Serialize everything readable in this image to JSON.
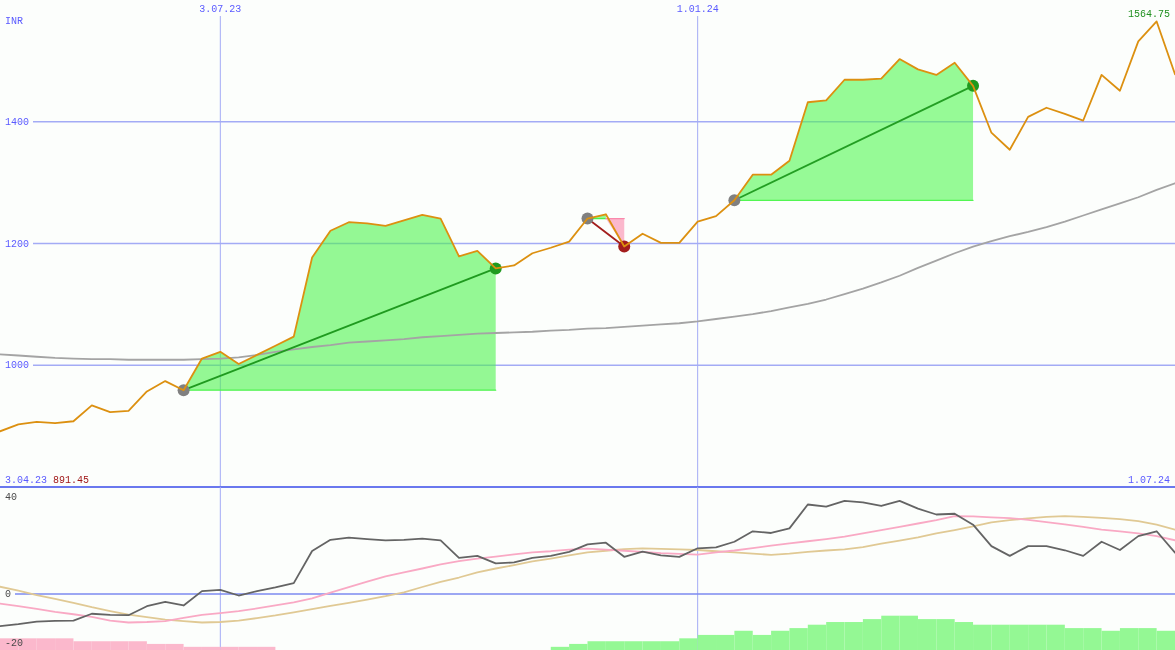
{
  "chart_data": [
    {
      "type": "line",
      "ylabel": "INR",
      "annotations": [
        "3.04.23",
        "891.45",
        "1.07.24",
        {
          "text": "1564.75",
          "x": "2024-06-24",
          "y": 1564.75
        }
      ],
      "x": [
        "2023-04-10",
        "2023-04-17",
        "2023-04-24",
        "2023-05-01",
        "2023-05-08",
        "2023-05-15",
        "2023-05-22",
        "2023-05-29",
        "2023-06-05",
        "2023-06-12",
        "2023-06-19",
        "2023-06-26",
        "2023-07-03",
        "2023-07-10",
        "2023-07-17",
        "2023-07-24",
        "2023-07-31",
        "2023-08-07",
        "2023-08-14",
        "2023-08-21",
        "2023-08-28",
        "2023-09-04",
        "2023-09-11",
        "2023-09-18",
        "2023-09-25",
        "2023-10-02",
        "2023-10-09",
        "2023-10-16",
        "2023-10-23",
        "2023-10-30",
        "2023-11-06",
        "2023-11-13",
        "2023-11-20",
        "2023-11-27",
        "2023-12-04",
        "2023-12-11",
        "2023-12-18",
        "2023-12-25",
        "2024-01-01",
        "2024-01-08",
        "2024-01-15",
        "2024-01-22",
        "2024-01-29",
        "2024-02-05",
        "2024-02-12",
        "2024-02-19",
        "2024-02-26",
        "2024-03-04",
        "2024-03-11",
        "2024-03-18",
        "2024-03-25",
        "2024-04-01",
        "2024-04-08",
        "2024-04-15",
        "2024-04-22",
        "2024-04-29",
        "2024-05-06",
        "2024-05-13",
        "2024-05-20",
        "2024-05-27",
        "2024-06-03",
        "2024-06-10",
        "2024-06-17",
        "2024-06-24",
        "2024-07-01"
      ],
      "xlim": [
        "2023-04-10",
        "2024-07-01"
      ],
      "xticks": [
        {
          "value": "2023-07-03",
          "label": "3.07.23"
        },
        {
          "value": "2024-01-01",
          "label": "1.01.24"
        }
      ],
      "ylim": [
        800,
        1600
      ],
      "yticks": [
        1000,
        1200,
        1400
      ],
      "grid": true,
      "series": [
        {
          "color": "#4ff44f",
          "x": [
            "2023-06-19",
            "2023-06-26",
            "2023-07-03",
            "2023-07-10",
            "2023-07-17",
            "2023-07-24",
            "2023-07-31",
            "2023-08-07",
            "2023-08-14",
            "2023-08-21",
            "2023-08-28",
            "2023-09-04",
            "2023-09-11",
            "2023-09-18",
            "2023-09-25",
            "2023-10-02",
            "2023-10-09",
            "2023-10-16"
          ],
          "values": [
            959,
            959,
            959,
            959,
            959,
            959,
            959,
            959,
            959,
            959,
            959,
            959,
            959,
            959,
            959,
            959,
            959,
            959
          ],
          "lower": [
            959,
            959,
            959,
            959,
            959,
            959,
            959,
            959,
            959,
            959,
            959,
            959,
            959,
            959,
            959,
            959,
            959,
            959
          ],
          "upper": [
            959,
            1011,
            1022,
            1002,
            1017,
            1032,
            1047,
            1177,
            1221,
            1235,
            1233,
            1229,
            1238,
            1247,
            1241,
            1179,
            1188,
            1159
          ]
        },
        {
          "color": "#52f652",
          "x": [
            "2024-01-15",
            "2024-01-22",
            "2024-01-29",
            "2024-02-05",
            "2024-02-12",
            "2024-02-19",
            "2024-02-26",
            "2024-03-04",
            "2024-03-11",
            "2024-03-18",
            "2024-03-25",
            "2024-04-01",
            "2024-04-08",
            "2024-04-15"
          ],
          "values": [
            1271,
            1271,
            1271,
            1271,
            1271,
            1271,
            1271,
            1271,
            1271,
            1271,
            1271,
            1271,
            1271,
            1271
          ],
          "lower": [
            1271,
            1271,
            1271,
            1271,
            1271,
            1271,
            1271,
            1271,
            1271,
            1271,
            1271,
            1271,
            1271,
            1271
          ],
          "upper": [
            1271,
            1313,
            1313,
            1336,
            1432,
            1435,
            1469,
            1469,
            1471,
            1503,
            1486,
            1477,
            1497,
            1459
          ]
        },
        {
          "color": "#4cf14c",
          "x": [
            "2023-11-20",
            "2023-11-27"
          ],
          "values": [
            1241,
            1241
          ],
          "lower": [
            1241,
            1241
          ],
          "upper": [
            1241,
            1248
          ]
        },
        {
          "color": "#fa89ac",
          "x": [
            "2023-11-27",
            "2023-12-04"
          ],
          "values": [
            1241,
            1241
          ],
          "lower": [
            1241,
            1195
          ],
          "upper": [
            1241,
            1241
          ]
        },
        {
          "color": "#a4a4a4",
          "values": [
            1018,
            1016,
            1014,
            1012,
            1011,
            1010,
            1010,
            1009,
            1009,
            1009,
            1009,
            1010,
            1011,
            1013,
            1017,
            1022,
            1026,
            1030,
            1033,
            1037,
            1039,
            1041,
            1043,
            1046,
            1048,
            1050,
            1052,
            1053,
            1054,
            1055,
            1057,
            1058,
            1060,
            1061,
            1063,
            1065,
            1067,
            1069,
            1072,
            1076,
            1080,
            1084,
            1089,
            1095,
            1101,
            1108,
            1117,
            1126,
            1136,
            1147,
            1160,
            1172,
            1184,
            1195,
            1204,
            1212,
            1219,
            1227,
            1236,
            1246,
            1256,
            1266,
            1276,
            1288,
            1299
          ]
        },
        {
          "color": "#1f9a1f",
          "x": [
            "2023-06-19",
            "2023-10-16"
          ],
          "values": [
            959,
            1159
          ]
        },
        {
          "color": "#239e23",
          "x": [
            "2024-01-15",
            "2024-04-15"
          ],
          "values": [
            1271,
            1459
          ]
        },
        {
          "color": "#a31d1d",
          "x": [
            "2023-11-20",
            "2023-12-04"
          ],
          "values": [
            1241,
            1195
          ]
        },
        {
          "type": "scatter",
          "color": "#808080",
          "marker": "circle",
          "x": [
            "2023-06-19",
            "2023-11-20",
            "2024-01-15"
          ],
          "values": [
            959,
            1241,
            1271
          ]
        },
        {
          "type": "scatter",
          "color": "#1f9a1f",
          "marker": "circle",
          "x": [
            "2023-10-16",
            "2024-04-15"
          ],
          "values": [
            1159,
            1459
          ]
        },
        {
          "type": "scatter",
          "color": "#a31d1d",
          "marker": "circle",
          "x": [
            "2023-12-04"
          ],
          "values": [
            1195
          ]
        },
        {
          "color": "#dc9010",
          "values": [
            891.45,
            903,
            907,
            905,
            908,
            934,
            923,
            925,
            957,
            974,
            959,
            1011,
            1022,
            1002,
            1017,
            1032,
            1047,
            1177,
            1221,
            1235,
            1233,
            1229,
            1238,
            1247,
            1241,
            1179,
            1188,
            1159,
            1164,
            1184,
            1193,
            1203,
            1241,
            1248,
            1195,
            1216,
            1201,
            1201,
            1236,
            1245,
            1271,
            1313,
            1313,
            1336,
            1432,
            1435,
            1469,
            1469,
            1471,
            1503,
            1486,
            1477,
            1497,
            1459,
            1382,
            1354,
            1408,
            1423,
            1413,
            1402,
            1477,
            1451,
            1532,
            1564.75,
            1478
          ]
        }
      ]
    },
    {
      "type": "line",
      "x": [
        "2023-04-10",
        "2023-04-17",
        "2023-04-24",
        "2023-05-01",
        "2023-05-08",
        "2023-05-15",
        "2023-05-22",
        "2023-05-29",
        "2023-06-05",
        "2023-06-12",
        "2023-06-19",
        "2023-06-26",
        "2023-07-03",
        "2023-07-10",
        "2023-07-17",
        "2023-07-24",
        "2023-07-31",
        "2023-08-07",
        "2023-08-14",
        "2023-08-21",
        "2023-08-28",
        "2023-09-04",
        "2023-09-11",
        "2023-09-18",
        "2023-09-25",
        "2023-10-02",
        "2023-10-09",
        "2023-10-16",
        "2023-10-23",
        "2023-10-30",
        "2023-11-06",
        "2023-11-13",
        "2023-11-20",
        "2023-11-27",
        "2023-12-04",
        "2023-12-11",
        "2023-12-18",
        "2023-12-25",
        "2024-01-01",
        "2024-01-08",
        "2024-01-15",
        "2024-01-22",
        "2024-01-29",
        "2024-02-05",
        "2024-02-12",
        "2024-02-19",
        "2024-02-26",
        "2024-03-04",
        "2024-03-11",
        "2024-03-18",
        "2024-03-25",
        "2024-04-01",
        "2024-04-08",
        "2024-04-15",
        "2024-04-22",
        "2024-04-29",
        "2024-05-06",
        "2024-05-13",
        "2024-05-20",
        "2024-05-27",
        "2024-06-03",
        "2024-06-10",
        "2024-06-17",
        "2024-06-24",
        "2024-07-01"
      ],
      "xlim": [
        "2023-04-10",
        "2024-07-01"
      ],
      "xticks": [
        {
          "value": "2023-07-03",
          "label": null
        },
        {
          "value": "2024-01-01",
          "label": null
        }
      ],
      "ylim": [
        -23,
        44
      ],
      "yticks": [
        40,
        0,
        -20
      ],
      "grid": "x",
      "tick_labels": "y",
      "ref_lines": [
        {
          "axis": "y",
          "value": 0,
          "color": "#7d8af0"
        }
      ],
      "series": [
        {
          "type": "bar",
          "x": [
            "2023-04-13T12:00",
            "2023-04-20T12:00",
            "2023-04-27T12:00",
            "2023-05-04T12:00",
            "2023-05-11T12:00",
            "2023-05-18T12:00",
            "2023-05-25T12:00",
            "2023-06-01T12:00",
            "2023-06-08T12:00",
            "2023-06-15T12:00",
            "2023-06-22T12:00",
            "2023-06-29T12:00",
            "2023-07-06T12:00",
            "2023-07-13T12:00",
            "2023-07-20T12:00",
            "2023-11-09T12:00",
            "2023-11-16T12:00",
            "2023-11-23T12:00",
            "2023-11-30T12:00",
            "2023-12-07T12:00",
            "2023-12-14T12:00",
            "2023-12-21T12:00",
            "2023-12-28T12:00",
            "2024-01-04T12:00",
            "2024-01-11T12:00",
            "2024-01-18T12:00",
            "2024-01-25T12:00",
            "2024-02-01T12:00",
            "2024-02-08T12:00",
            "2024-02-15T12:00",
            "2024-02-22T12:00",
            "2024-02-29T12:00",
            "2024-03-07T12:00",
            "2024-03-14T12:00",
            "2024-03-21T12:00",
            "2024-03-28T12:00",
            "2024-04-04T12:00",
            "2024-04-11T12:00",
            "2024-04-18T12:00",
            "2024-04-25T12:00",
            "2024-05-02T12:00",
            "2024-05-09T12:00",
            "2024-05-16T12:00",
            "2024-05-23T12:00",
            "2024-05-30T12:00",
            "2024-06-06T12:00",
            "2024-06-13T12:00",
            "2024-06-20T12:00",
            "2024-06-27T12:00"
          ],
          "values": [
            4.8,
            4.8,
            4.8,
            4.8,
            3.6,
            3.6,
            3.6,
            3.6,
            2.5,
            2.5,
            1.3,
            1.3,
            1.3,
            1.3,
            1.3,
            1.3,
            2.5,
            3.6,
            3.6,
            3.6,
            3.6,
            3.6,
            4.8,
            6.2,
            6.2,
            7.9,
            6.2,
            7.9,
            9,
            10.4,
            11.5,
            11.5,
            12.7,
            14.1,
            14.1,
            12.7,
            12.7,
            11.5,
            10.4,
            10.4,
            10.4,
            10.4,
            10.4,
            9,
            9,
            7.9,
            9,
            9,
            7.9
          ],
          "base": [
            -23,
            -23,
            -23,
            -23,
            -23,
            -23,
            -23,
            -23,
            -23,
            -23,
            -23,
            -23,
            -23,
            -23,
            -23,
            -23,
            -23,
            -23,
            -23,
            -23,
            -23,
            -23,
            -23,
            -23,
            -23,
            -23,
            -23,
            -23,
            -23,
            -23,
            -23,
            -23,
            -23,
            -23,
            -23,
            -23,
            -23,
            -23,
            -23,
            -23,
            -23,
            -23,
            -23,
            -23,
            -23,
            -23,
            -23,
            -23,
            -23
          ],
          "colors": [
            "#fbb8cc",
            "#fbb8cc",
            "#fbb8cc",
            "#fbb8cc",
            "#fbb8cc",
            "#fbb8cc",
            "#fbb8cc",
            "#fbb8cc",
            "#fbb8cc",
            "#fbb8cc",
            "#fbb8cc",
            "#fbb8cc",
            "#fbb8cc",
            "#fbb8cc",
            "#fbb8cc",
            "#94f894",
            "#94f894",
            "#94f894",
            "#94f894",
            "#94f894",
            "#94f894",
            "#94f894",
            "#94f894",
            "#94f894",
            "#94f894",
            "#94f894",
            "#94f894",
            "#94f894",
            "#94f894",
            "#94f894",
            "#94f894",
            "#94f894",
            "#94f894",
            "#94f894",
            "#94f894",
            "#94f894",
            "#94f894",
            "#94f894",
            "#94f894",
            "#94f894",
            "#94f894",
            "#94f894",
            "#94f894",
            "#94f894",
            "#94f894",
            "#94f894",
            "#94f894",
            "#94f894",
            "#94f894"
          ]
        },
        {
          "color": "#e0c994",
          "values": [
            3,
            1.4,
            -0.4,
            -2,
            -3.6,
            -5.4,
            -7,
            -8.5,
            -9.5,
            -10.5,
            -11.1,
            -11.7,
            -11.5,
            -10.9,
            -9.9,
            -8.8,
            -7.5,
            -6.2,
            -4.9,
            -3.6,
            -2.3,
            -0.9,
            0.7,
            2.9,
            5,
            6.8,
            8.9,
            10.5,
            11.9,
            13.4,
            14.6,
            15.9,
            17.1,
            17.8,
            18.5,
            18.8,
            18.6,
            18.4,
            18.1,
            17.6,
            17.1,
            16.6,
            16.1,
            16.6,
            17.3,
            17.9,
            18.4,
            19.3,
            20.7,
            22,
            23.3,
            24.9,
            26.3,
            27.8,
            29.5,
            30.4,
            31.1,
            31.7,
            32,
            31.7,
            31.3,
            30.8,
            30,
            28.5,
            26.5
          ]
        },
        {
          "color": "#f9a9c4",
          "values": [
            -3.9,
            -5,
            -6.1,
            -7.3,
            -8.3,
            -9.4,
            -10.9,
            -11.7,
            -11.5,
            -11.1,
            -9.8,
            -8.6,
            -7.8,
            -7,
            -5.9,
            -4.7,
            -3.4,
            -1.8,
            0.6,
            2.8,
            5.1,
            7.3,
            8.9,
            10.5,
            12.2,
            13.5,
            14.6,
            15.4,
            16.3,
            17.1,
            17.6,
            18.3,
            18.7,
            18.3,
            17.8,
            17.3,
            16.8,
            16.5,
            16.2,
            17.1,
            17.9,
            18.9,
            19.9,
            20.8,
            21.7,
            22.6,
            23.6,
            24.9,
            26.3,
            27.6,
            29,
            30.4,
            32,
            31.9,
            31.5,
            31.2,
            30.5,
            29.6,
            28.6,
            27.6,
            26.5,
            25.8,
            24.9,
            23.8,
            22.1
          ]
        },
        {
          "color": "#646464",
          "values": [
            -13.2,
            -12.4,
            -11.3,
            -11,
            -10.9,
            -8.1,
            -8.6,
            -8.7,
            -5,
            -3.2,
            -4.7,
            1.2,
            1.7,
            -0.6,
            1.2,
            2.7,
            4.5,
            17.7,
            22.3,
            23.2,
            22.6,
            22.1,
            22.3,
            22.8,
            22.1,
            14.9,
            15.7,
            12.6,
            13,
            14.9,
            15.7,
            17.3,
            20.4,
            21.1,
            15.3,
            17.4,
            15.9,
            15.3,
            18.8,
            19.2,
            21.5,
            25.8,
            25.1,
            27,
            36.8,
            35.9,
            38.3,
            37.7,
            36.2,
            38.3,
            35.1,
            32.7,
            33,
            28.5,
            19.7,
            15.7,
            19.7,
            19.7,
            18,
            15.7,
            21.5,
            18.1,
            23.8,
            25.8,
            17
          ]
        }
      ]
    }
  ]
}
